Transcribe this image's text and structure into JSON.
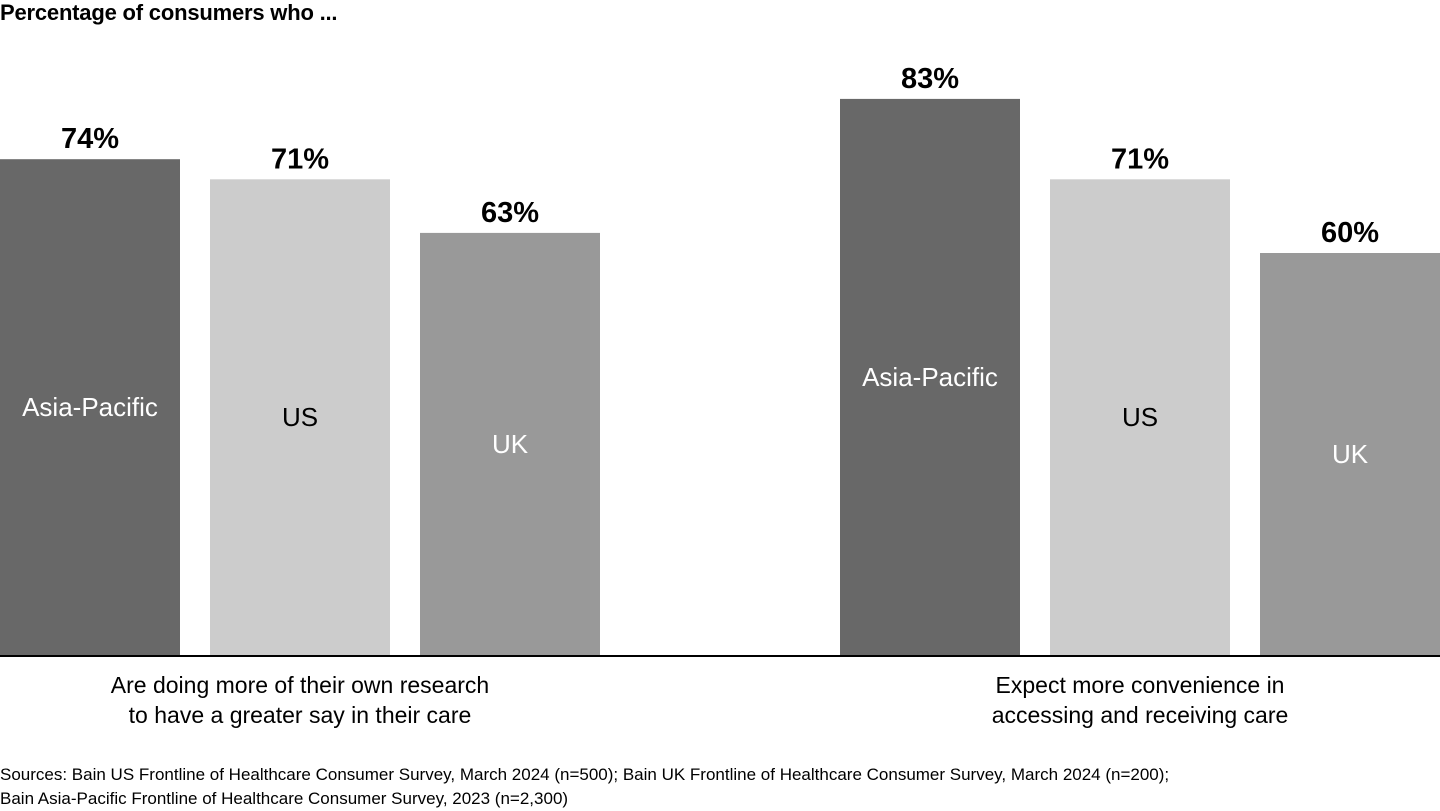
{
  "chart_data": {
    "type": "bar",
    "title": "Percentage of consumers who ...",
    "unit": "%",
    "ylim": [
      0,
      100
    ],
    "grid": false,
    "legend": "none",
    "groups": [
      {
        "label": "Are doing more of their own research\nto have a greater say in their care",
        "bars": [
          {
            "name": "Asia-Pacific",
            "value": 74,
            "value_label": "74%",
            "color": "#686868",
            "label_color": "#ffffff"
          },
          {
            "name": "US",
            "value": 71,
            "value_label": "71%",
            "color": "#cccccc",
            "label_color": "#000000"
          },
          {
            "name": "UK",
            "value": 63,
            "value_label": "63%",
            "color": "#999999",
            "label_color": "#ffffff"
          }
        ]
      },
      {
        "label": "Expect more convenience in\naccessing and receiving care",
        "bars": [
          {
            "name": "Asia-Pacific",
            "value": 83,
            "value_label": "83%",
            "color": "#686868",
            "label_color": "#ffffff"
          },
          {
            "name": "US",
            "value": 71,
            "value_label": "71%",
            "color": "#cccccc",
            "label_color": "#000000"
          },
          {
            "name": "UK",
            "value": 60,
            "value_label": "60%",
            "color": "#999999",
            "label_color": "#ffffff"
          }
        ]
      }
    ]
  },
  "footer": {
    "sources_line1": "Sources: Bain US Frontline of Healthcare Consumer Survey, March 2024 (n=500); Bain UK Frontline of Healthcare Consumer Survey, March 2024 (n=200);",
    "sources_line2": "Bain Asia-Pacific Frontline of Healthcare Consumer Survey, 2023 (n=2,300)"
  }
}
